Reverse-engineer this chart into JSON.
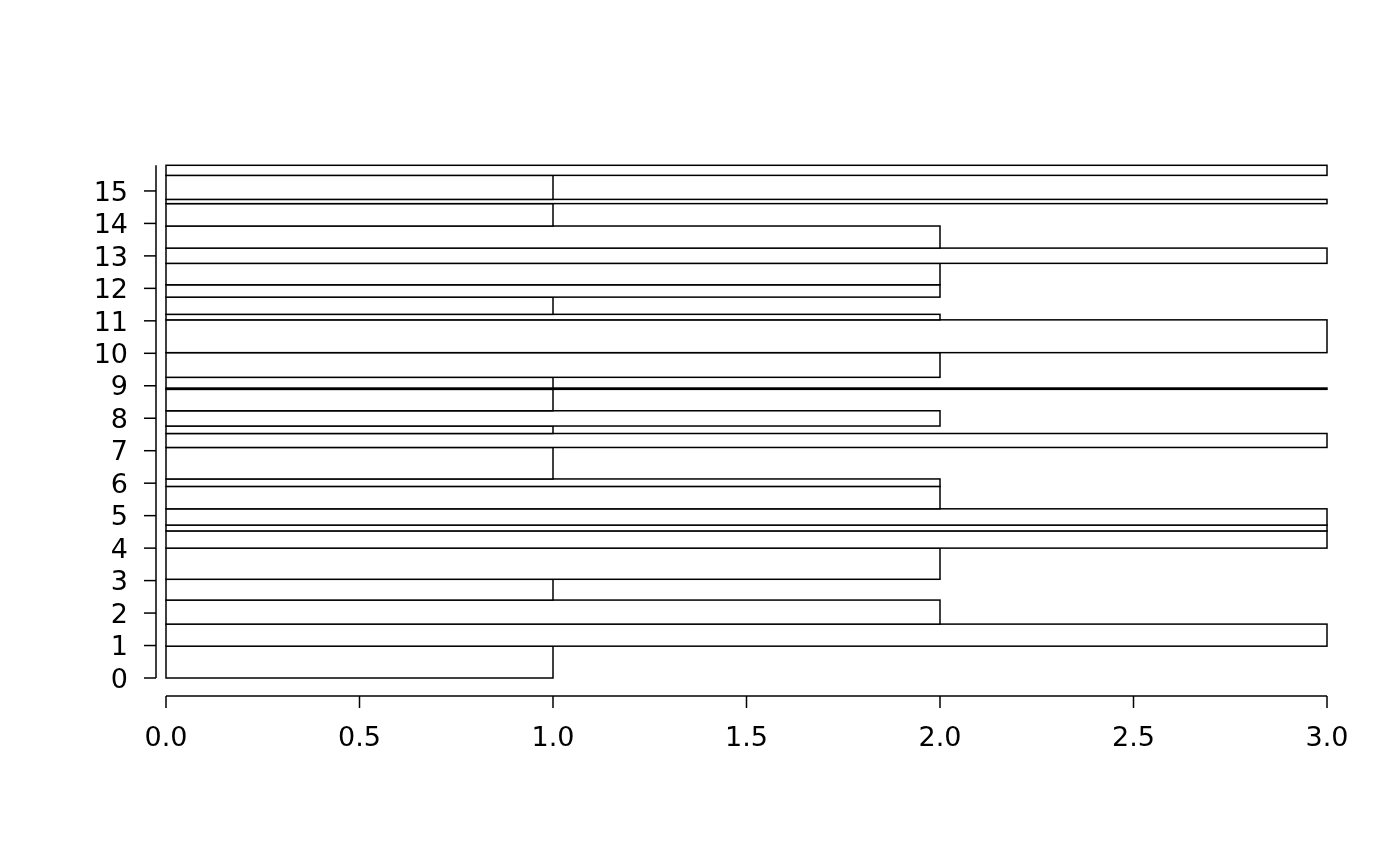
{
  "chart_data": {
    "type": "histogram",
    "orientation": "horizontal",
    "bins": [
      0,
      0.98,
      1.66,
      2.4,
      3.04,
      4,
      4.53,
      4.71,
      5.21,
      5.9,
      6.13,
      7.1,
      7.53,
      7.76,
      8.23,
      8.89,
      8.93,
      9.26,
      10.02,
      11.03,
      11.2,
      11.73,
      12.11,
      12.77,
      13.24,
      13.92,
      14.61,
      14.74,
      15.48,
      15.79
    ],
    "values": [
      1,
      3,
      2,
      1,
      2,
      3,
      3,
      3,
      2,
      2,
      1,
      3,
      1,
      2,
      1,
      3,
      1,
      2,
      3,
      2,
      1,
      2,
      2,
      3,
      2,
      1,
      3,
      1,
      3
    ],
    "color": "#ffffff",
    "xlim": [
      0,
      3
    ],
    "xticks": [
      {
        "value": 0,
        "label": "0.0"
      },
      {
        "value": 0.5,
        "label": "0.5"
      },
      {
        "value": 1,
        "label": "1.0"
      },
      {
        "value": 1.5,
        "label": "1.5"
      },
      {
        "value": 2,
        "label": "2.0"
      },
      {
        "value": 2.5,
        "label": "2.5"
      },
      {
        "value": 3,
        "label": "3.0"
      }
    ],
    "ylim": [
      0,
      15.79
    ],
    "yticks": [
      0,
      1,
      2,
      3,
      4,
      5,
      6,
      7,
      8,
      9,
      10,
      11,
      12,
      13,
      14,
      15
    ]
  }
}
